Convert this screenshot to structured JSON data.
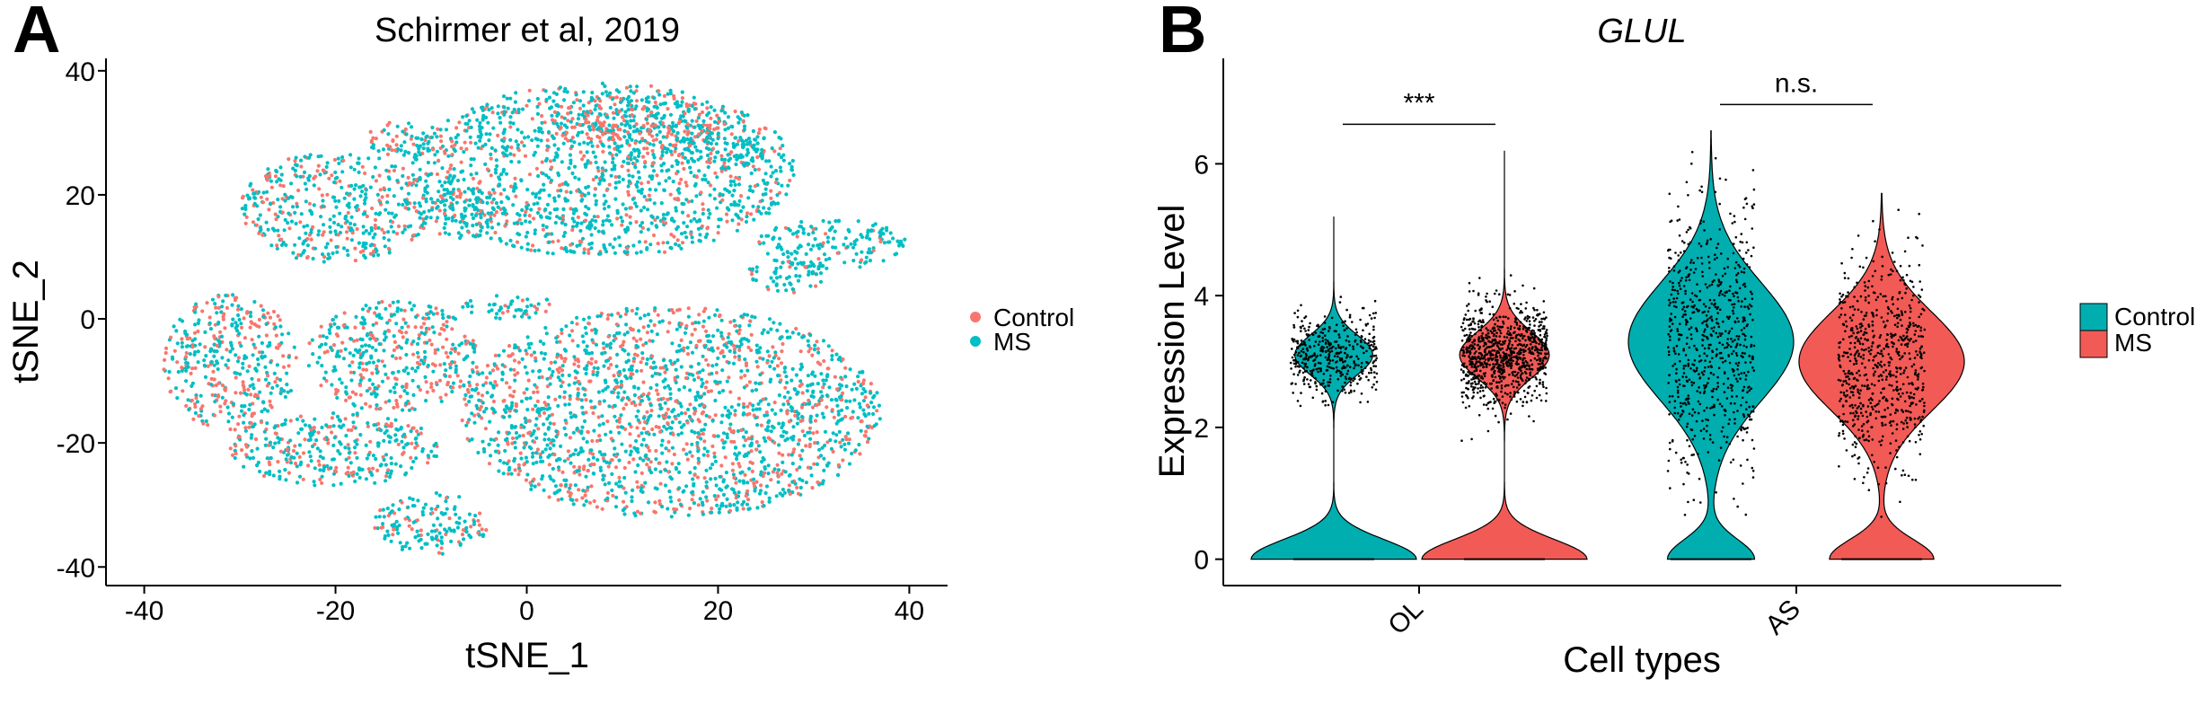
{
  "figure": {
    "panel_a": "A",
    "panel_b": "B"
  },
  "chart_data": [
    {
      "type": "scatter",
      "title": "Schirmer et al, 2019",
      "xlabel": "tSNE_1",
      "ylabel": "tSNE_2",
      "xlim": [
        -44,
        44
      ],
      "ylim": [
        -43,
        42
      ],
      "xticks": [
        -40,
        -20,
        0,
        20,
        40
      ],
      "yticks": [
        -40,
        -20,
        0,
        20,
        40
      ],
      "legend": {
        "placement": "right",
        "entries": [
          "Control",
          "MS"
        ]
      },
      "colors": {
        "Control": "#f8766d",
        "MS": "#00bfc4"
      },
      "grid": false,
      "clusters": [
        {
          "cx": 8,
          "cy": 24,
          "rx": 20,
          "ry": 14,
          "control_share": 0.25
        },
        {
          "cx": 12,
          "cy": 31,
          "rx": 9,
          "ry": 5,
          "control_share": 0.6
        },
        {
          "cx": -20,
          "cy": 18,
          "rx": 10,
          "ry": 9,
          "control_share": 0.3
        },
        {
          "cx": -13,
          "cy": 29,
          "rx": 4,
          "ry": 3,
          "control_share": 0.3
        },
        {
          "cx": -7,
          "cy": 17,
          "rx": 5,
          "ry": 4,
          "control_share": 0.2
        },
        {
          "cx": -31,
          "cy": -7,
          "rx": 7,
          "ry": 11,
          "control_share": 0.45
        },
        {
          "cx": -14,
          "cy": -6,
          "rx": 9,
          "ry": 9,
          "control_share": 0.35
        },
        {
          "cx": -20,
          "cy": -21,
          "rx": 11,
          "ry": 6,
          "control_share": 0.3
        },
        {
          "cx": -10,
          "cy": -33,
          "rx": 6,
          "ry": 5,
          "control_share": 0.3
        },
        {
          "cx": 15,
          "cy": -15,
          "rx": 22,
          "ry": 17,
          "control_share": 0.35
        },
        {
          "cx": 32,
          "cy": 12,
          "rx": 8,
          "ry": 4,
          "control_share": 0.15
        },
        {
          "cx": 27,
          "cy": 7,
          "rx": 4,
          "ry": 3,
          "control_share": 0.1
        },
        {
          "cx": 20,
          "cy": 27,
          "rx": 5,
          "ry": 3,
          "control_share": 0.1
        },
        {
          "cx": -2,
          "cy": 2,
          "rx": 5,
          "ry": 2,
          "control_share": 0.2
        }
      ]
    },
    {
      "type": "violin",
      "title": "GLUL",
      "xlabel": "Cell types",
      "ylabel": "Expression Level",
      "categories": [
        "OL",
        "AS"
      ],
      "ylim": [
        -0.4,
        7.6
      ],
      "yticks": [
        0,
        2,
        4,
        6
      ],
      "legend": {
        "placement": "right",
        "entries": [
          "Control",
          "MS"
        ]
      },
      "colors": {
        "Control": "#00aeb0",
        "MS": "#f25a56"
      },
      "grid": false,
      "groups": [
        {
          "category": "OL",
          "series": "Control",
          "max": 5.2,
          "modes": [
            [
              0,
              0.3,
              0.7
            ],
            [
              3.1,
              0.3,
              0.33
            ]
          ]
        },
        {
          "category": "OL",
          "series": "MS",
          "max": 6.2,
          "modes": [
            [
              0,
              0.3,
              0.7
            ],
            [
              3.1,
              0.35,
              0.38
            ]
          ]
        },
        {
          "category": "AS",
          "series": "Control",
          "max": 6.5,
          "modes": [
            [
              0,
              0.3,
              0.5
            ],
            [
              3.3,
              0.9,
              0.95
            ]
          ]
        },
        {
          "category": "AS",
          "series": "MS",
          "max": 5.55,
          "modes": [
            [
              0,
              0.3,
              0.6
            ],
            [
              3.0,
              0.75,
              0.95
            ]
          ]
        }
      ],
      "comparisons": [
        {
          "category": "OL",
          "label": "***",
          "y": 6.6
        },
        {
          "category": "AS",
          "label": "n.s.",
          "y": 6.9
        }
      ]
    }
  ]
}
